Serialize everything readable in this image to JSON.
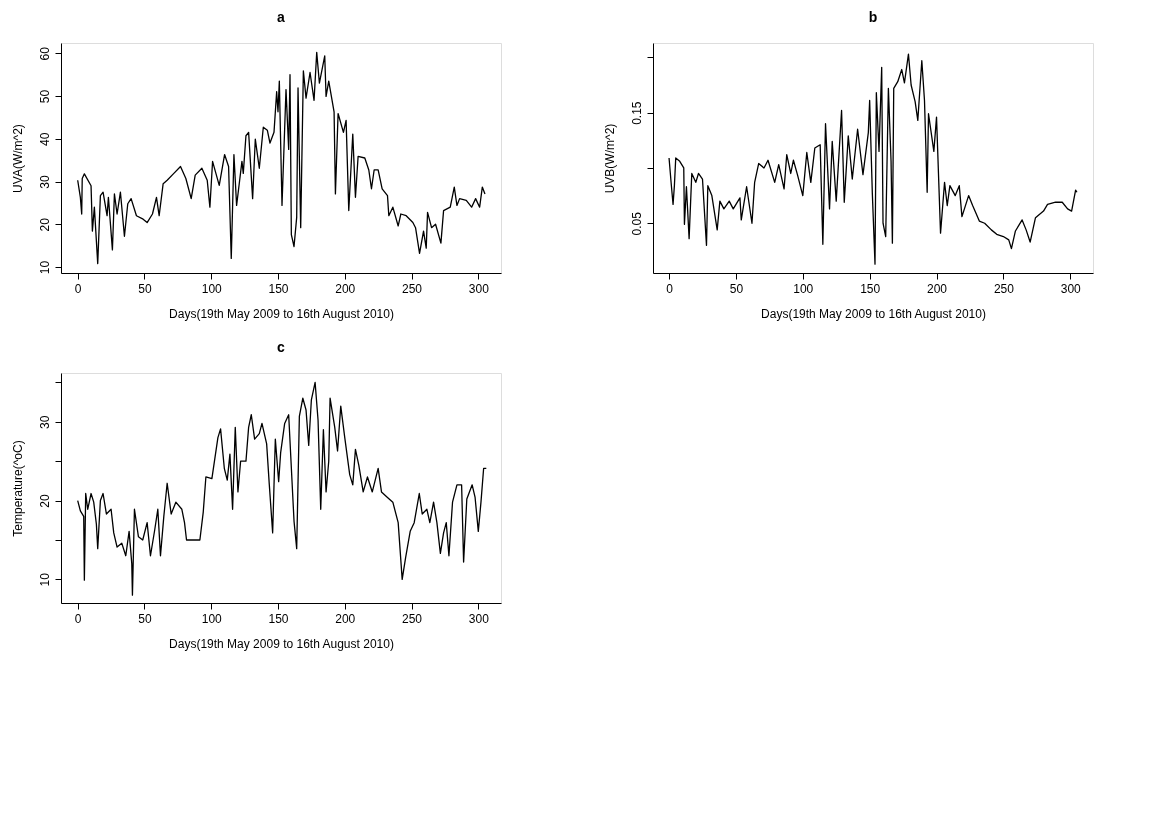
{
  "chart_data": [
    {
      "type": "line",
      "title": "a",
      "xlabel": "Days(19th May 2009 to 16th August 2010)",
      "ylabel": "UVA(W/m^2)",
      "color": "#000000",
      "xlim": [
        -12.5,
        317
      ],
      "ylim": [
        8.6,
        62.4
      ],
      "xticks": [
        0,
        50,
        100,
        150,
        200,
        250,
        300
      ],
      "yticks": [
        10,
        20,
        30,
        40,
        50,
        60
      ],
      "x": [
        0,
        2,
        3,
        3.4,
        5,
        10,
        11,
        12.5,
        15,
        17,
        19,
        22,
        23,
        26,
        27.5,
        29.5,
        32,
        35,
        37.5,
        40,
        44,
        49,
        52,
        56,
        59,
        61,
        64,
        67,
        72,
        77,
        81,
        85,
        88,
        93,
        97,
        99,
        101,
        106,
        110,
        113,
        115,
        117,
        119,
        123,
        124,
        126,
        128,
        131,
        133,
        136,
        139,
        142,
        144,
        147,
        149,
        150,
        151,
        153,
        156,
        158,
        159,
        160,
        162,
        164,
        165,
        167,
        169,
        171,
        174,
        177,
        179,
        181,
        185,
        186,
        188,
        192,
        193,
        195,
        199,
        201,
        203,
        206,
        208,
        210,
        215,
        218,
        220,
        222,
        225,
        228,
        232,
        233,
        236,
        240,
        242,
        246,
        251,
        253,
        256,
        259,
        261,
        262,
        265,
        268,
        272,
        274,
        279,
        282,
        284,
        286,
        291,
        295,
        298,
        301,
        303,
        305
      ],
      "values": [
        30.3,
        26.3,
        22.4,
        30.7,
        31.8,
        29,
        18.4,
        24,
        10.8,
        26.7,
        27.5,
        22,
        26.3,
        14,
        27.1,
        22.4,
        27.5,
        17.2,
        24.8,
        26,
        22,
        21.2,
        20.4,
        22.4,
        26.3,
        22,
        29.5,
        30.3,
        31.9,
        33.5,
        30.7,
        26,
        31.5,
        33.1,
        30.3,
        24,
        34.7,
        29.1,
        36.3,
        33.5,
        12,
        36.3,
        24.4,
        34.7,
        31.9,
        40.7,
        41.5,
        26,
        39.9,
        33.1,
        42.7,
        42,
        39,
        41.5,
        51,
        46.3,
        53.5,
        24.4,
        51.5,
        37.5,
        55,
        17.6,
        14.8,
        21.6,
        51.9,
        19.2,
        55.9,
        49.5,
        55.5,
        49,
        60.2,
        53,
        59.4,
        49.9,
        53.5,
        46.3,
        27.1,
        45.9,
        41.5,
        44.3,
        23.2,
        41.1,
        26.3,
        35.9,
        35.5,
        32.7,
        28.3,
        32.7,
        32.7,
        28.3,
        26.7,
        22,
        24,
        19.6,
        22.4,
        22,
        20.4,
        19.2,
        13.2,
        18.4,
        14.4,
        22.8,
        19.2,
        20,
        15.6,
        23.2,
        24,
        28.7,
        24.4,
        26,
        25.6,
        24,
        26,
        24,
        28.7,
        27.1
      ]
    },
    {
      "type": "line",
      "title": "b",
      "xlabel": "Days(19th May 2009 to 16th August 2010)",
      "ylabel": "UVB(W/m^2)",
      "color": "#000000",
      "xlim": [
        -12,
        317
      ],
      "ylim": [
        0.005,
        0.213
      ],
      "xticks": [
        0,
        50,
        100,
        150,
        200,
        250,
        300
      ],
      "yticks": [
        0.05,
        {
          "value": 0.1,
          "label": null
        },
        0.15,
        {
          "value": 0.2,
          "label": null
        }
      ],
      "x": [
        0,
        1.6,
        3,
        4,
        5,
        8,
        11,
        11.5,
        13,
        15,
        17,
        20,
        22,
        25,
        28,
        29,
        32,
        36,
        38,
        41,
        45,
        48,
        53,
        54,
        58,
        62,
        64,
        67,
        71,
        74,
        79,
        82,
        86,
        88,
        91,
        93,
        96,
        100,
        103,
        106,
        109,
        113,
        115,
        117,
        120,
        122,
        125,
        129,
        131,
        134,
        137,
        141,
        145,
        149,
        150,
        152,
        154,
        155,
        157,
        159,
        160,
        162,
        164,
        166,
        167,
        168,
        171,
        174,
        176,
        179,
        181,
        184,
        186,
        189,
        191,
        193,
        194,
        198,
        200,
        203,
        206,
        208,
        210,
        214,
        217,
        219,
        224,
        227,
        232,
        236,
        241,
        245,
        250,
        254,
        256,
        259,
        264,
        267,
        270,
        274,
        280,
        283,
        289,
        294,
        298,
        301,
        304,
        305
      ],
      "values": [
        0.109,
        0.086,
        0.067,
        0.084,
        0.109,
        0.106,
        0.1,
        0.049,
        0.083,
        0.036,
        0.095,
        0.087,
        0.095,
        0.09,
        0.03,
        0.084,
        0.075,
        0.044,
        0.07,
        0.063,
        0.07,
        0.063,
        0.073,
        0.053,
        0.083,
        0.05,
        0.087,
        0.104,
        0.1,
        0.107,
        0.087,
        0.103,
        0.081,
        0.112,
        0.095,
        0.107,
        0.094,
        0.075,
        0.114,
        0.087,
        0.118,
        0.121,
        0.031,
        0.14,
        0.063,
        0.124,
        0.07,
        0.152,
        0.069,
        0.129,
        0.09,
        0.135,
        0.094,
        0.132,
        0.161,
        0.077,
        0.013,
        0.168,
        0.115,
        0.191,
        0.05,
        0.038,
        0.172,
        0.106,
        0.032,
        0.172,
        0.178,
        0.189,
        0.177,
        0.203,
        0.175,
        0.16,
        0.143,
        0.197,
        0.161,
        0.078,
        0.149,
        0.115,
        0.146,
        0.041,
        0.087,
        0.066,
        0.084,
        0.075,
        0.084,
        0.056,
        0.075,
        0.066,
        0.052,
        0.05,
        0.044,
        0.04,
        0.038,
        0.035,
        0.027,
        0.043,
        0.053,
        0.044,
        0.033,
        0.055,
        0.061,
        0.067,
        0.069,
        0.069,
        0.063,
        0.061,
        0.08,
        0.078
      ]
    },
    {
      "type": "line",
      "title": "c",
      "xlabel": "Days(19th May 2009 to 16th August 2010)",
      "ylabel": "Temperature(^oC)",
      "color": "#000000",
      "xlim": [
        -12.5,
        317
      ],
      "ylim": [
        7,
        36.2
      ],
      "xticks": [
        0,
        50,
        100,
        150,
        200,
        250,
        300
      ],
      "yticks": [
        10,
        {
          "value": 15,
          "label": null
        },
        20,
        {
          "value": 25,
          "label": null
        },
        30,
        {
          "value": 35,
          "label": null
        }
      ],
      "x": [
        0,
        2,
        4.5,
        5,
        6,
        7.5,
        10,
        12,
        14,
        15,
        17,
        19,
        21.5,
        25,
        27,
        29.5,
        33,
        36,
        38.5,
        40.5,
        41,
        42.5,
        45.5,
        48.7,
        52,
        54.5,
        57.7,
        60,
        62,
        64.5,
        67,
        70,
        73.5,
        78,
        80,
        81.5,
        91.5,
        94,
        96,
        100.5,
        105,
        107,
        109.8,
        112,
        114,
        116,
        118,
        120,
        122,
        126,
        128,
        130,
        132.5,
        136,
        138,
        141.5,
        143.5,
        146,
        148,
        150.5,
        152,
        155,
        158,
        162,
        164,
        166,
        168.6,
        171,
        173,
        175,
        177.8,
        180,
        182,
        184,
        186,
        188,
        189,
        192.5,
        194.6,
        197,
        200,
        203.7,
        206,
        208,
        210.5,
        213.8,
        217,
        220.6,
        225,
        227.5,
        232,
        236,
        240,
        243,
        245.6,
        249,
        252,
        255.8,
        258,
        261.5,
        263.7,
        266.5,
        269,
        271.6,
        274,
        276,
        278,
        280.7,
        284,
        287.5,
        289,
        291.4,
        295.4,
        297.6,
        300,
        302,
        304,
        306
      ],
      "values": [
        20,
        18.7,
        18,
        9.9,
        20.9,
        18.9,
        20.9,
        19.8,
        17,
        13.9,
        20,
        20.9,
        18.3,
        18.9,
        15.9,
        14.1,
        14.6,
        13,
        16.1,
        12,
        8,
        18.9,
        15.4,
        15,
        17.2,
        13,
        16.3,
        18.9,
        13,
        18,
        22.2,
        18.3,
        19.8,
        18.9,
        17.2,
        15,
        15,
        18.5,
        23,
        22.8,
        28,
        29.1,
        24.1,
        22.6,
        25.9,
        18.9,
        29.3,
        21.1,
        25,
        25,
        29.3,
        30.9,
        27.8,
        28.5,
        29.8,
        27.2,
        22,
        15.9,
        27.8,
        22.4,
        26.1,
        29.8,
        30.9,
        17.4,
        13.9,
        30.7,
        33,
        31.5,
        27,
        32.8,
        35,
        30.2,
        18.9,
        29,
        21.1,
        25,
        33,
        29.3,
        26.3,
        32,
        28,
        23.3,
        22,
        26.5,
        24.5,
        21.1,
        23,
        21.1,
        24.1,
        21.1,
        20.4,
        19.8,
        17.2,
        10,
        12.8,
        16.1,
        17.2,
        20.9,
        18.3,
        18.9,
        17.2,
        19.8,
        17.2,
        13.3,
        15.9,
        17.2,
        13,
        19.8,
        22,
        22,
        12.2,
        20.2,
        22,
        20.4,
        16.1,
        19.8,
        24.1,
        24.1
      ]
    }
  ]
}
